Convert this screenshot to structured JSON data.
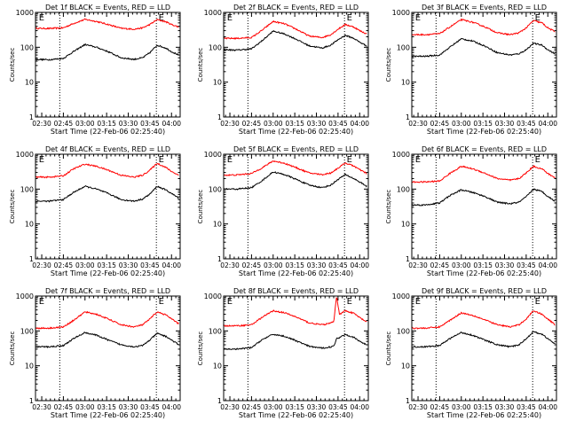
{
  "chart_data": {
    "type": "line",
    "panel_titles": [
      "Det 1f BLACK = Events, RED = LLD",
      "Det 2f BLACK = Events, RED = LLD",
      "Det 3f BLACK = Events, RED = LLD",
      "Det 4f BLACK = Events, RED = LLD",
      "Det 5f BLACK = Events, RED = LLD",
      "Det 6f BLACK = Events, RED = LLD",
      "Det 7f BLACK = Events, RED = LLD",
      "Det 8f BLACK = Events, RED = LLD",
      "Det 9f BLACK = Events, RED = LLD"
    ],
    "xlabel": "Start Time (22-Feb-06 02:25:40)",
    "ylabel": "Counts/sec",
    "x_ticks": [
      "02:30",
      "02:45",
      "03:00",
      "03:15",
      "03:30",
      "03:45",
      "04:00"
    ],
    "x_tick_minutes": [
      30,
      45,
      60,
      75,
      90,
      105,
      120
    ],
    "xlim_minutes": [
      25.67,
      126
    ],
    "y_ticks": [
      "1",
      "10",
      "100",
      "1000"
    ],
    "y_scale": "log",
    "ylim": [
      1,
      1000
    ],
    "vline_minutes": [
      42.5,
      109.5
    ],
    "marker_letter": "E",
    "marker_minutes": [
      28,
      111
    ],
    "series_colors": {
      "events": "#000000",
      "lld": "#ff0000"
    },
    "series_legend": "BLACK = Events, RED = LLD",
    "panels": [
      {
        "x": [
          26,
          35,
          45,
          52,
          60,
          68,
          76,
          85,
          94,
          100,
          105,
          110,
          116,
          120,
          125
        ],
        "events": [
          45,
          44,
          48,
          75,
          120,
          100,
          75,
          50,
          45,
          50,
          70,
          115,
          95,
          75,
          60
        ],
        "lld": [
          350,
          345,
          360,
          480,
          630,
          550,
          450,
          350,
          330,
          360,
          450,
          620,
          540,
          450,
          380
        ]
      },
      {
        "x": [
          26,
          35,
          45,
          52,
          60,
          68,
          76,
          85,
          94,
          100,
          105,
          110,
          116,
          120,
          125
        ],
        "events": [
          85,
          83,
          90,
          150,
          290,
          240,
          170,
          110,
          95,
          115,
          165,
          220,
          180,
          140,
          110
        ],
        "lld": [
          180,
          180,
          190,
          300,
          550,
          470,
          330,
          210,
          190,
          230,
          330,
          450,
          380,
          300,
          240
        ]
      },
      {
        "x": [
          26,
          35,
          45,
          52,
          60,
          68,
          76,
          85,
          94,
          100,
          105,
          110,
          116,
          120,
          125
        ],
        "events": [
          55,
          55,
          60,
          100,
          175,
          150,
          110,
          70,
          60,
          65,
          85,
          130,
          115,
          85,
          65
        ],
        "lld": [
          230,
          230,
          245,
          380,
          620,
          520,
          390,
          260,
          230,
          260,
          360,
          580,
          500,
          360,
          280
        ]
      },
      {
        "x": [
          26,
          35,
          45,
          52,
          60,
          68,
          76,
          85,
          94,
          100,
          105,
          110,
          116,
          120,
          125
        ],
        "events": [
          45,
          45,
          50,
          80,
          120,
          100,
          75,
          50,
          45,
          52,
          72,
          120,
          95,
          75,
          55
        ],
        "lld": [
          220,
          220,
          240,
          380,
          520,
          450,
          350,
          250,
          220,
          250,
          350,
          550,
          420,
          320,
          250
        ]
      },
      {
        "x": [
          26,
          35,
          45,
          52,
          60,
          68,
          76,
          85,
          94,
          100,
          105,
          110,
          116,
          120,
          125
        ],
        "events": [
          100,
          100,
          110,
          170,
          310,
          260,
          190,
          130,
          110,
          130,
          190,
          260,
          200,
          160,
          120
        ],
        "lld": [
          250,
          255,
          280,
          400,
          640,
          550,
          410,
          290,
          260,
          290,
          400,
          560,
          460,
          360,
          280
        ]
      },
      {
        "x": [
          26,
          35,
          45,
          52,
          60,
          68,
          76,
          85,
          94,
          100,
          105,
          110,
          116,
          120,
          125
        ],
        "events": [
          35,
          35,
          40,
          65,
          95,
          80,
          62,
          42,
          38,
          42,
          60,
          100,
          85,
          62,
          45
        ],
        "lld": [
          160,
          160,
          170,
          280,
          450,
          380,
          290,
          200,
          180,
          200,
          290,
          450,
          380,
          280,
          210
        ]
      },
      {
        "x": [
          26,
          35,
          45,
          52,
          60,
          68,
          76,
          85,
          94,
          100,
          105,
          110,
          116,
          120,
          125
        ],
        "events": [
          35,
          35,
          38,
          60,
          90,
          75,
          55,
          40,
          35,
          38,
          55,
          85,
          70,
          55,
          40
        ],
        "lld": [
          120,
          120,
          130,
          200,
          350,
          300,
          220,
          150,
          130,
          150,
          220,
          350,
          290,
          220,
          160
        ]
      },
      {
        "x": [
          26,
          35,
          45,
          52,
          60,
          68,
          76,
          85,
          94,
          98,
          102,
          104,
          106,
          110,
          116,
          120,
          125
        ],
        "events": [
          30,
          30,
          33,
          55,
          80,
          70,
          52,
          36,
          32,
          34,
          36,
          60,
          65,
          80,
          65,
          50,
          40
        ],
        "lld": [
          140,
          140,
          150,
          240,
          380,
          330,
          250,
          170,
          150,
          160,
          180,
          1000,
          300,
          380,
          320,
          240,
          180
        ]
      },
      {
        "x": [
          26,
          35,
          45,
          52,
          60,
          68,
          76,
          85,
          94,
          100,
          105,
          110,
          116,
          120,
          125
        ],
        "events": [
          35,
          35,
          38,
          60,
          90,
          75,
          55,
          40,
          35,
          40,
          60,
          95,
          80,
          60,
          42
        ],
        "lld": [
          120,
          120,
          130,
          200,
          330,
          280,
          210,
          150,
          130,
          150,
          220,
          380,
          300,
          220,
          150
        ]
      }
    ]
  }
}
